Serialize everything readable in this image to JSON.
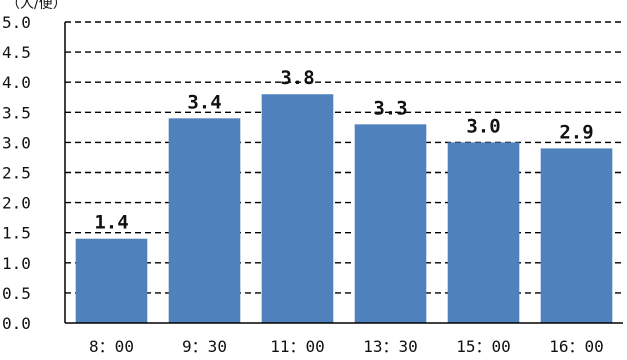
{
  "chart_data": {
    "type": "bar",
    "ylabel": "（人/便）",
    "categories": [
      "8：00",
      "9：30",
      "11：00",
      "13：30",
      "15：00",
      "16：00"
    ],
    "values": [
      1.4,
      3.4,
      3.8,
      3.3,
      3.0,
      2.9
    ],
    "data_labels": [
      "1.4",
      "3.4",
      "3.8",
      "3.3",
      "3.0",
      "2.9"
    ],
    "y_ticks": [
      "0.0",
      "0.5",
      "1.0",
      "1.5",
      "2.0",
      "2.5",
      "3.0",
      "3.5",
      "4.0",
      "4.5",
      "5.0"
    ],
    "ylim": [
      0,
      5
    ],
    "grid": true,
    "grid_style": "dashed",
    "legend": "none",
    "colors": {
      "bar": "#4f81bd",
      "grid": "#000000",
      "axis": "#000000"
    }
  }
}
